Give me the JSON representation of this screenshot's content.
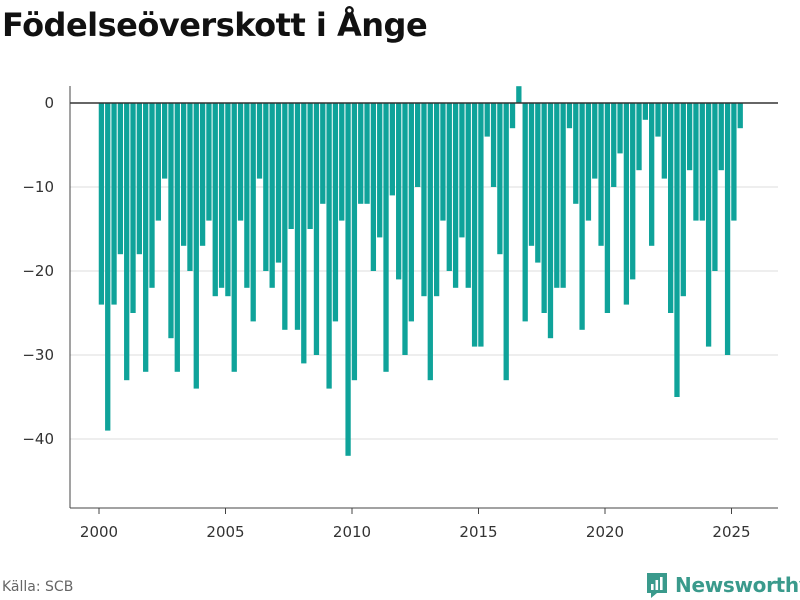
{
  "title": "Födelseöverskott i Ånge",
  "source": "Källa: SCB",
  "brand": "Newsworthy",
  "colors": {
    "bar": "#0fa39a",
    "brand": "#3a9a8c"
  },
  "chart_data": {
    "type": "bar",
    "title": "Födelseöverskott i Ånge",
    "xlabel": "",
    "ylabel": "",
    "ylim": [
      -48,
      2
    ],
    "xlim": [
      1999.1,
      2026.8
    ],
    "grid": true,
    "y_ticks": [
      0,
      -10,
      -20,
      -30,
      -40
    ],
    "y_tick_labels": [
      "0",
      "−10",
      "−20",
      "−30",
      "−40"
    ],
    "x_ticks": [
      2000,
      2005,
      2010,
      2015,
      2020,
      2025
    ],
    "x_tick_labels": [
      "2000",
      "2005",
      "2010",
      "2015",
      "2020",
      "2025"
    ],
    "values": [
      -24,
      -39,
      -24,
      -18,
      -33,
      -25,
      -18,
      -32,
      -22,
      -14,
      -9,
      -28,
      -32,
      -17,
      -20,
      -34,
      -17,
      -14,
      -23,
      -22,
      -23,
      -32,
      -14,
      -22,
      -26,
      -9,
      -20,
      -22,
      -19,
      -27,
      -15,
      -27,
      -31,
      -15,
      -30,
      -12,
      -34,
      -26,
      -14,
      -42,
      -33,
      -12,
      -12,
      -20,
      -16,
      -32,
      -11,
      -21,
      -30,
      -26,
      -10,
      -23,
      -33,
      -23,
      -14,
      -20,
      -22,
      -16,
      -22,
      -29,
      -29,
      -4,
      -10,
      -18,
      -33,
      -3,
      2,
      -26,
      -17,
      -19,
      -25,
      -28,
      -22,
      -22,
      -3,
      -12,
      -27,
      -14,
      -9,
      -17,
      -25,
      -10,
      -6,
      -24,
      -21,
      -8,
      -2,
      -17,
      -4,
      -9,
      -25,
      -35,
      -23,
      -8,
      -14,
      -14,
      -29,
      -20,
      -8,
      -30,
      -14,
      -3
    ]
  }
}
